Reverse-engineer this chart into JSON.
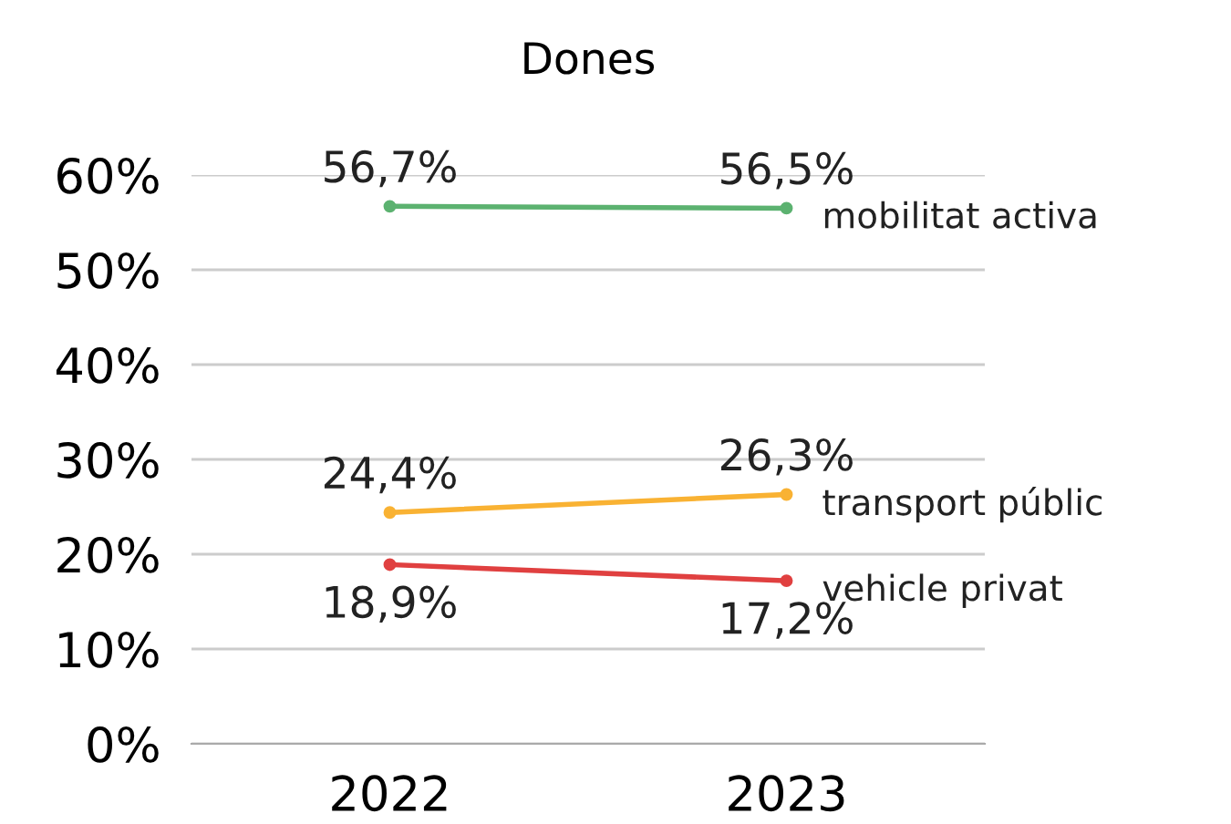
{
  "chart_data": {
    "type": "line",
    "title": "Dones",
    "categories": [
      "2022",
      "2023"
    ],
    "series": [
      {
        "name": "mobilitat activa",
        "color": "#5cb270",
        "values": [
          56.7,
          56.5
        ],
        "value_labels": [
          "56,7%",
          "56,5%"
        ]
      },
      {
        "name": "transport públic",
        "color": "#f9b233",
        "values": [
          24.4,
          26.3
        ],
        "value_labels": [
          "24,4%",
          "26,3%"
        ]
      },
      {
        "name": "vehicle privat",
        "color": "#e04040",
        "values": [
          18.9,
          17.2
        ],
        "value_labels": [
          "18,9%",
          "17,2%"
        ]
      }
    ],
    "ylim": [
      0,
      60
    ],
    "yticks": [
      {
        "value": 0,
        "label": "0%"
      },
      {
        "value": 10,
        "label": "10%"
      },
      {
        "value": 20,
        "label": "20%"
      },
      {
        "value": 30,
        "label": "30%"
      },
      {
        "value": 40,
        "label": "40%"
      },
      {
        "value": 50,
        "label": "50%"
      },
      {
        "value": 60,
        "label": "60%"
      }
    ],
    "grid": "y",
    "marker": "circle",
    "line_style": "solid"
  }
}
